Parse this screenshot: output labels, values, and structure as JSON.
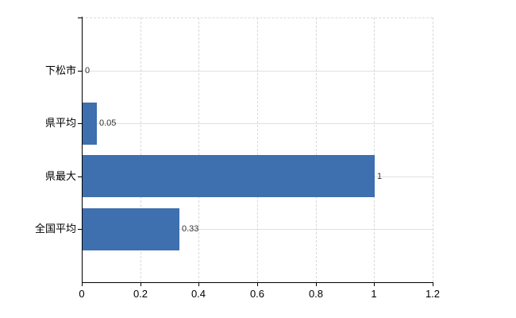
{
  "chart_data": {
    "type": "bar",
    "orientation": "horizontal",
    "title": "",
    "xlabel": "",
    "ylabel": "",
    "categories": [
      "下松市",
      "県平均",
      "県最大",
      "全国平均"
    ],
    "values": [
      0,
      0.05,
      1,
      0.33
    ],
    "value_labels": [
      "0",
      "0.05",
      "1",
      "0.33"
    ],
    "x_ticks": [
      0,
      0.2,
      0.4,
      0.6,
      0.8,
      1,
      1.2
    ],
    "x_tick_labels": [
      "0",
      "0.2",
      "0.4",
      "0.6",
      "0.8",
      "1",
      "1.2"
    ],
    "xlim": [
      0,
      1.2
    ],
    "grid": true,
    "legend": false,
    "bar_color": "#3e6fae"
  },
  "colors": {
    "bar": "#3e6fae",
    "axis": "#000000",
    "grid_horizontal": "#dde3dd",
    "grid_vertical": "#d9d9d9",
    "axis_text": "#000000",
    "value_text": "#333333",
    "background": "#ffffff"
  }
}
